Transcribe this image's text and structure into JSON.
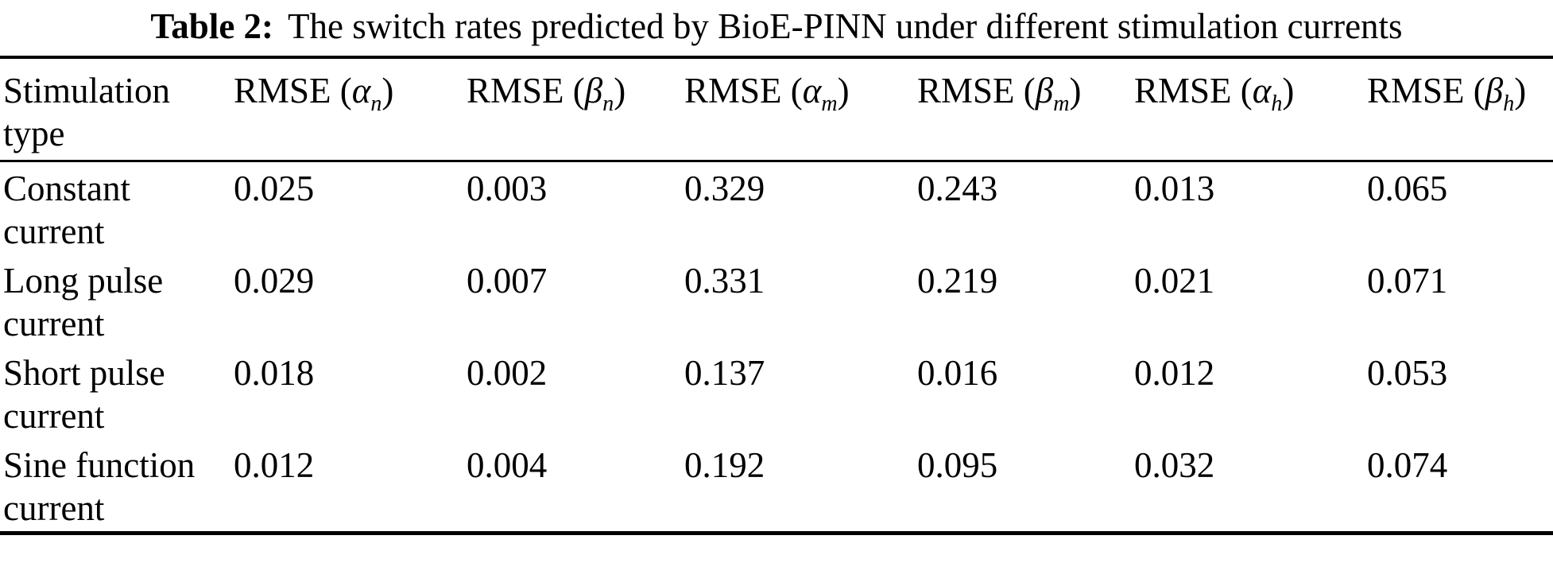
{
  "caption": {
    "label": "Table 2:",
    "text": "The switch rates predicted by BioE-PINN under different stimulation currents"
  },
  "table": {
    "columns": [
      {
        "label": "Stimulation type"
      },
      {
        "prefix": "RMSE (",
        "symbol": "α",
        "sub": "n",
        "suffix": ")"
      },
      {
        "prefix": "RMSE (",
        "symbol": "β",
        "sub": "n",
        "suffix": ")"
      },
      {
        "prefix": "RMSE (",
        "symbol": "α",
        "sub": "m",
        "suffix": ")"
      },
      {
        "prefix": "RMSE (",
        "symbol": "β",
        "sub": "m",
        "suffix": ")"
      },
      {
        "prefix": "RMSE (",
        "symbol": "α",
        "sub": "h",
        "suffix": ")"
      },
      {
        "prefix": "RMSE (",
        "symbol": "β",
        "sub": "h",
        "suffix": ")"
      }
    ],
    "rows": [
      {
        "type": "Constant current",
        "values": [
          "0.025",
          "0.003",
          "0.329",
          "0.243",
          "0.013",
          "0.065"
        ]
      },
      {
        "type": "Long pulse current",
        "values": [
          "0.029",
          "0.007",
          "0.331",
          "0.219",
          "0.021",
          "0.071"
        ]
      },
      {
        "type": "Short pulse current",
        "values": [
          "0.018",
          "0.002",
          "0.137",
          "0.016",
          "0.012",
          "0.053"
        ]
      },
      {
        "type": "Sine function current",
        "values": [
          "0.012",
          "0.004",
          "0.192",
          "0.095",
          "0.032",
          "0.074"
        ]
      }
    ]
  }
}
